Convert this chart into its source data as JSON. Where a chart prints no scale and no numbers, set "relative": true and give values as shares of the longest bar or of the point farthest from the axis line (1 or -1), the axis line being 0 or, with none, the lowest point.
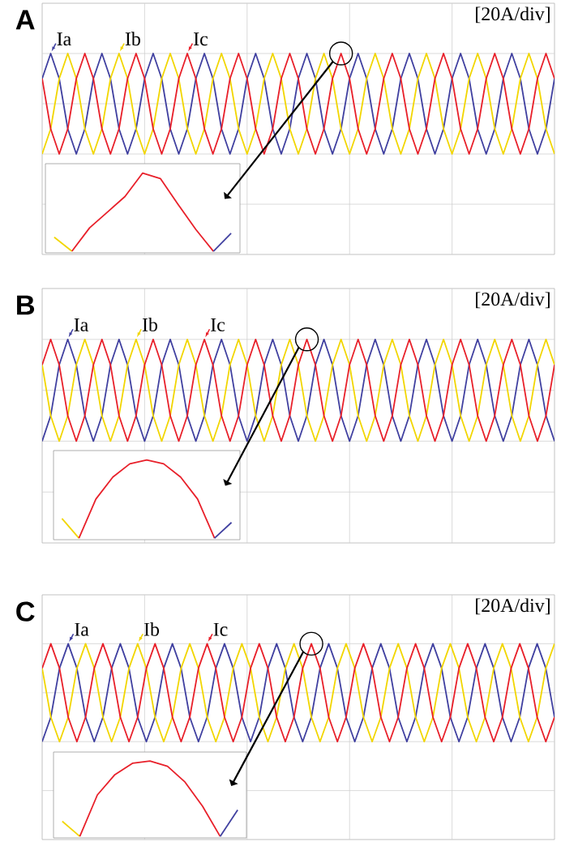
{
  "chart_data": [
    {
      "type": "line",
      "title": "A",
      "relative": true,
      "grid": true,
      "legend": "top left",
      "annotations": [
        "[20A/div]"
      ],
      "categories": [
        null,
        null,
        null,
        null,
        null,
        null,
        null,
        null,
        null,
        null,
        null,
        null,
        null,
        null,
        null,
        null,
        null,
        null,
        null,
        null,
        null,
        null,
        null,
        null,
        null,
        null,
        null,
        null,
        null,
        null,
        null,
        null,
        null,
        null,
        null,
        null,
        null,
        null,
        null,
        null,
        null,
        null,
        null,
        null,
        null,
        null,
        null,
        null,
        null,
        null,
        null,
        null,
        null,
        null,
        null,
        null,
        null,
        null,
        null,
        null,
        null
      ],
      "series": [
        {
          "name": "Ia",
          "color": "#4040a0",
          "values": [
            0.75,
            1,
            0.75,
            0.25,
            0,
            0.25,
            0.75,
            1,
            0.75,
            0.25,
            0,
            0.25,
            0.75,
            1,
            0.75,
            0.25,
            0,
            0.25,
            0.75,
            1,
            0.75,
            0.25,
            0,
            0.25,
            0.75,
            1,
            0.75,
            0.25,
            0,
            0.25,
            0.75,
            1,
            0.75,
            0.25,
            0,
            0.25,
            0.75,
            1,
            0.75,
            0.25,
            0,
            0.25,
            0.75,
            1,
            0.75,
            0.25,
            0,
            0.25,
            0.75,
            1,
            0.75,
            0.25,
            0,
            0.25,
            0.75,
            1,
            0.75,
            0.25,
            0,
            0.25,
            0.75
          ]
        },
        {
          "name": "Ib",
          "color": "#f2d600",
          "values": [
            0,
            0.25,
            0.75,
            1,
            0.75,
            0.25,
            0,
            0.25,
            0.75,
            1,
            0.75,
            0.25,
            0,
            0.25,
            0.75,
            1,
            0.75,
            0.25,
            0,
            0.25,
            0.75,
            1,
            0.75,
            0.25,
            0,
            0.25,
            0.75,
            1,
            0.75,
            0.25,
            0,
            0.25,
            0.75,
            1,
            0.75,
            0.25,
            0,
            0.25,
            0.75,
            1,
            0.75,
            0.25,
            0,
            0.25,
            0.75,
            1,
            0.75,
            0.25,
            0,
            0.25,
            0.75,
            1,
            0.75,
            0.25,
            0,
            0.25,
            0.75,
            1,
            0.75,
            0.25,
            0
          ]
        },
        {
          "name": "Ic",
          "color": "#e8202a",
          "values": [
            0.75,
            0.25,
            0,
            0.25,
            0.75,
            1,
            0.75,
            0.25,
            0,
            0.25,
            0.75,
            1,
            0.75,
            0.25,
            0,
            0.25,
            0.75,
            1,
            0.75,
            0.25,
            0,
            0.25,
            0.75,
            1,
            0.75,
            0.25,
            0,
            0.25,
            0.75,
            1,
            0.75,
            0.25,
            0,
            0.25,
            0.75,
            1,
            0.75,
            0.25,
            0,
            0.25,
            0.75,
            1,
            0.75,
            0.25,
            0,
            0.25,
            0.75,
            1,
            0.75,
            0.25,
            0,
            0.25,
            0.75,
            1,
            0.75,
            0.25,
            0,
            0.25,
            0.75,
            1,
            0.75
          ]
        }
      ]
    },
    {
      "type": "line",
      "relative": true,
      "categories": [
        null,
        null,
        null,
        null,
        null,
        null,
        null,
        null,
        null,
        null,
        null
      ],
      "series": [
        {
          "color": "#f2d600",
          "values": [
            0.18,
            0,
            null,
            null,
            null,
            null,
            null,
            null,
            null,
            null,
            null
          ]
        },
        {
          "color": "#e8202a",
          "values": [
            null,
            0,
            0.3,
            0.5,
            0.7,
            1,
            0.93,
            0.6,
            0.28,
            0,
            null
          ]
        },
        {
          "color": "#4040a0",
          "values": [
            null,
            null,
            null,
            null,
            null,
            null,
            null,
            null,
            null,
            0,
            0.23
          ]
        }
      ]
    },
    {
      "type": "line",
      "title": "B",
      "relative": true,
      "grid": true,
      "legend": "top left",
      "annotations": [
        "[20A/div]"
      ],
      "categories": [
        null,
        null,
        null,
        null,
        null,
        null,
        null,
        null,
        null,
        null,
        null,
        null,
        null,
        null,
        null,
        null,
        null,
        null,
        null,
        null,
        null,
        null,
        null,
        null,
        null,
        null,
        null,
        null,
        null,
        null,
        null,
        null,
        null,
        null,
        null,
        null,
        null,
        null,
        null,
        null,
        null,
        null,
        null,
        null,
        null,
        null,
        null,
        null,
        null,
        null,
        null,
        null,
        null,
        null,
        null,
        null,
        null,
        null,
        null,
        null,
        null
      ],
      "series": [
        {
          "name": "Ia",
          "color": "#4040a0",
          "values": [
            0,
            0.25,
            0.75,
            1,
            0.75,
            0.25,
            0,
            0.25,
            0.75,
            1,
            0.75,
            0.25,
            0,
            0.25,
            0.75,
            1,
            0.75,
            0.25,
            0,
            0.25,
            0.75,
            1,
            0.75,
            0.25,
            0,
            0.25,
            0.75,
            1,
            0.75,
            0.25,
            0,
            0.25,
            0.75,
            1,
            0.75,
            0.25,
            0,
            0.25,
            0.75,
            1,
            0.75,
            0.25,
            0,
            0.25,
            0.75,
            1,
            0.75,
            0.25,
            0,
            0.25,
            0.75,
            1,
            0.75,
            0.25,
            0,
            0.25,
            0.75,
            1,
            0.75,
            0.25,
            0
          ]
        },
        {
          "name": "Ib",
          "color": "#f2d600",
          "values": [
            0.75,
            0.25,
            0,
            0.25,
            0.75,
            1,
            0.75,
            0.25,
            0,
            0.25,
            0.75,
            1,
            0.75,
            0.25,
            0,
            0.25,
            0.75,
            1,
            0.75,
            0.25,
            0,
            0.25,
            0.75,
            1,
            0.75,
            0.25,
            0,
            0.25,
            0.75,
            1,
            0.75,
            0.25,
            0,
            0.25,
            0.75,
            1,
            0.75,
            0.25,
            0,
            0.25,
            0.75,
            1,
            0.75,
            0.25,
            0,
            0.25,
            0.75,
            1,
            0.75,
            0.25,
            0,
            0.25,
            0.75,
            1,
            0.75,
            0.25,
            0,
            0.25,
            0.75,
            1,
            0.75
          ]
        },
        {
          "name": "Ic",
          "color": "#e8202a",
          "values": [
            0.75,
            1,
            0.75,
            0.25,
            0,
            0.25,
            0.75,
            1,
            0.75,
            0.25,
            0,
            0.25,
            0.75,
            1,
            0.75,
            0.25,
            0,
            0.25,
            0.75,
            1,
            0.75,
            0.25,
            0,
            0.25,
            0.75,
            1,
            0.75,
            0.25,
            0,
            0.25,
            0.75,
            1,
            0.75,
            0.25,
            0,
            0.25,
            0.75,
            1,
            0.75,
            0.25,
            0,
            0.25,
            0.75,
            1,
            0.75,
            0.25,
            0,
            0.25,
            0.75,
            1,
            0.75,
            0.25,
            0,
            0.25,
            0.75,
            1,
            0.75,
            0.25,
            0,
            0.25,
            0.75
          ]
        }
      ]
    },
    {
      "type": "line",
      "relative": true,
      "categories": [
        null,
        null,
        null,
        null,
        null,
        null,
        null,
        null,
        null,
        null,
        null
      ],
      "series": [
        {
          "color": "#f2d600",
          "values": [
            0.25,
            0,
            null,
            null,
            null,
            null,
            null,
            null,
            null,
            null,
            null
          ]
        },
        {
          "color": "#e8202a",
          "values": [
            null,
            0,
            0.5,
            0.78,
            0.95,
            1,
            0.95,
            0.78,
            0.5,
            0,
            null
          ]
        },
        {
          "color": "#4040a0",
          "values": [
            null,
            null,
            null,
            null,
            null,
            null,
            null,
            null,
            null,
            0,
            0.2
          ]
        }
      ]
    },
    {
      "type": "line",
      "title": "C",
      "relative": true,
      "grid": true,
      "legend": "top left",
      "annotations": [
        "[20A/div]"
      ],
      "categories": [
        null,
        null,
        null,
        null,
        null,
        null,
        null,
        null,
        null,
        null,
        null,
        null,
        null,
        null,
        null,
        null,
        null,
        null,
        null,
        null,
        null,
        null,
        null,
        null,
        null,
        null,
        null,
        null,
        null,
        null,
        null,
        null,
        null,
        null,
        null,
        null,
        null,
        null,
        null,
        null,
        null,
        null,
        null,
        null,
        null,
        null,
        null,
        null,
        null,
        null,
        null,
        null,
        null,
        null,
        null,
        null,
        null,
        null,
        null,
        null
      ],
      "series": [
        {
          "name": "Ia",
          "color": "#4040a0",
          "values": [
            0,
            0.25,
            0.75,
            1,
            0.75,
            0.25,
            0,
            0.25,
            0.75,
            1,
            0.75,
            0.25,
            0,
            0.25,
            0.75,
            1,
            0.75,
            0.25,
            0,
            0.25,
            0.75,
            1,
            0.75,
            0.25,
            0,
            0.25,
            0.75,
            1,
            0.75,
            0.25,
            0,
            0.25,
            0.75,
            1,
            0.75,
            0.25,
            0,
            0.25,
            0.75,
            1,
            0.75,
            0.25,
            0,
            0.25,
            0.75,
            1,
            0.75,
            0.25,
            0,
            0.25,
            0.75,
            1,
            0.75,
            0.25,
            0,
            0.25,
            0.75,
            1,
            0.75,
            0.25
          ]
        },
        {
          "name": "Ib",
          "color": "#f2d600",
          "values": [
            0.75,
            0.25,
            0,
            0.25,
            0.75,
            1,
            0.75,
            0.25,
            0,
            0.25,
            0.75,
            1,
            0.75,
            0.25,
            0,
            0.25,
            0.75,
            1,
            0.75,
            0.25,
            0,
            0.25,
            0.75,
            1,
            0.75,
            0.25,
            0,
            0.25,
            0.75,
            1,
            0.75,
            0.25,
            0,
            0.25,
            0.75,
            1,
            0.75,
            0.25,
            0,
            0.25,
            0.75,
            1,
            0.75,
            0.25,
            0,
            0.25,
            0.75,
            1,
            0.75,
            0.25,
            0,
            0.25,
            0.75,
            1,
            0.75,
            0.25,
            0,
            0.25,
            0.75,
            1
          ]
        },
        {
          "name": "Ic",
          "color": "#e8202a",
          "values": [
            0.75,
            1,
            0.75,
            0.25,
            0,
            0.25,
            0.75,
            1,
            0.75,
            0.25,
            0,
            0.25,
            0.75,
            1,
            0.75,
            0.25,
            0,
            0.25,
            0.75,
            1,
            0.75,
            0.25,
            0,
            0.25,
            0.75,
            1,
            0.75,
            0.25,
            0,
            0.25,
            0.75,
            1,
            0.75,
            0.25,
            0,
            0.25,
            0.75,
            1,
            0.75,
            0.25,
            0,
            0.25,
            0.75,
            1,
            0.75,
            0.25,
            0,
            0.25,
            0.75,
            1,
            0.75,
            0.25,
            0,
            0.25,
            0.75,
            1,
            0.75,
            0.25,
            0,
            0.25
          ]
        }
      ]
    },
    {
      "type": "line",
      "relative": true,
      "categories": [
        null,
        null,
        null,
        null,
        null,
        null,
        null,
        null,
        null,
        null,
        null
      ],
      "series": [
        {
          "color": "#f2d600",
          "values": [
            0.2,
            0,
            null,
            null,
            null,
            null,
            null,
            null,
            null,
            null,
            null
          ]
        },
        {
          "color": "#e8202a",
          "values": [
            null,
            0,
            0.55,
            0.82,
            0.97,
            1,
            0.93,
            0.72,
            0.4,
            0,
            null
          ]
        },
        {
          "color": "#4040a0",
          "values": [
            null,
            null,
            null,
            null,
            null,
            null,
            null,
            null,
            null,
            0,
            0.35
          ]
        }
      ]
    }
  ]
}
